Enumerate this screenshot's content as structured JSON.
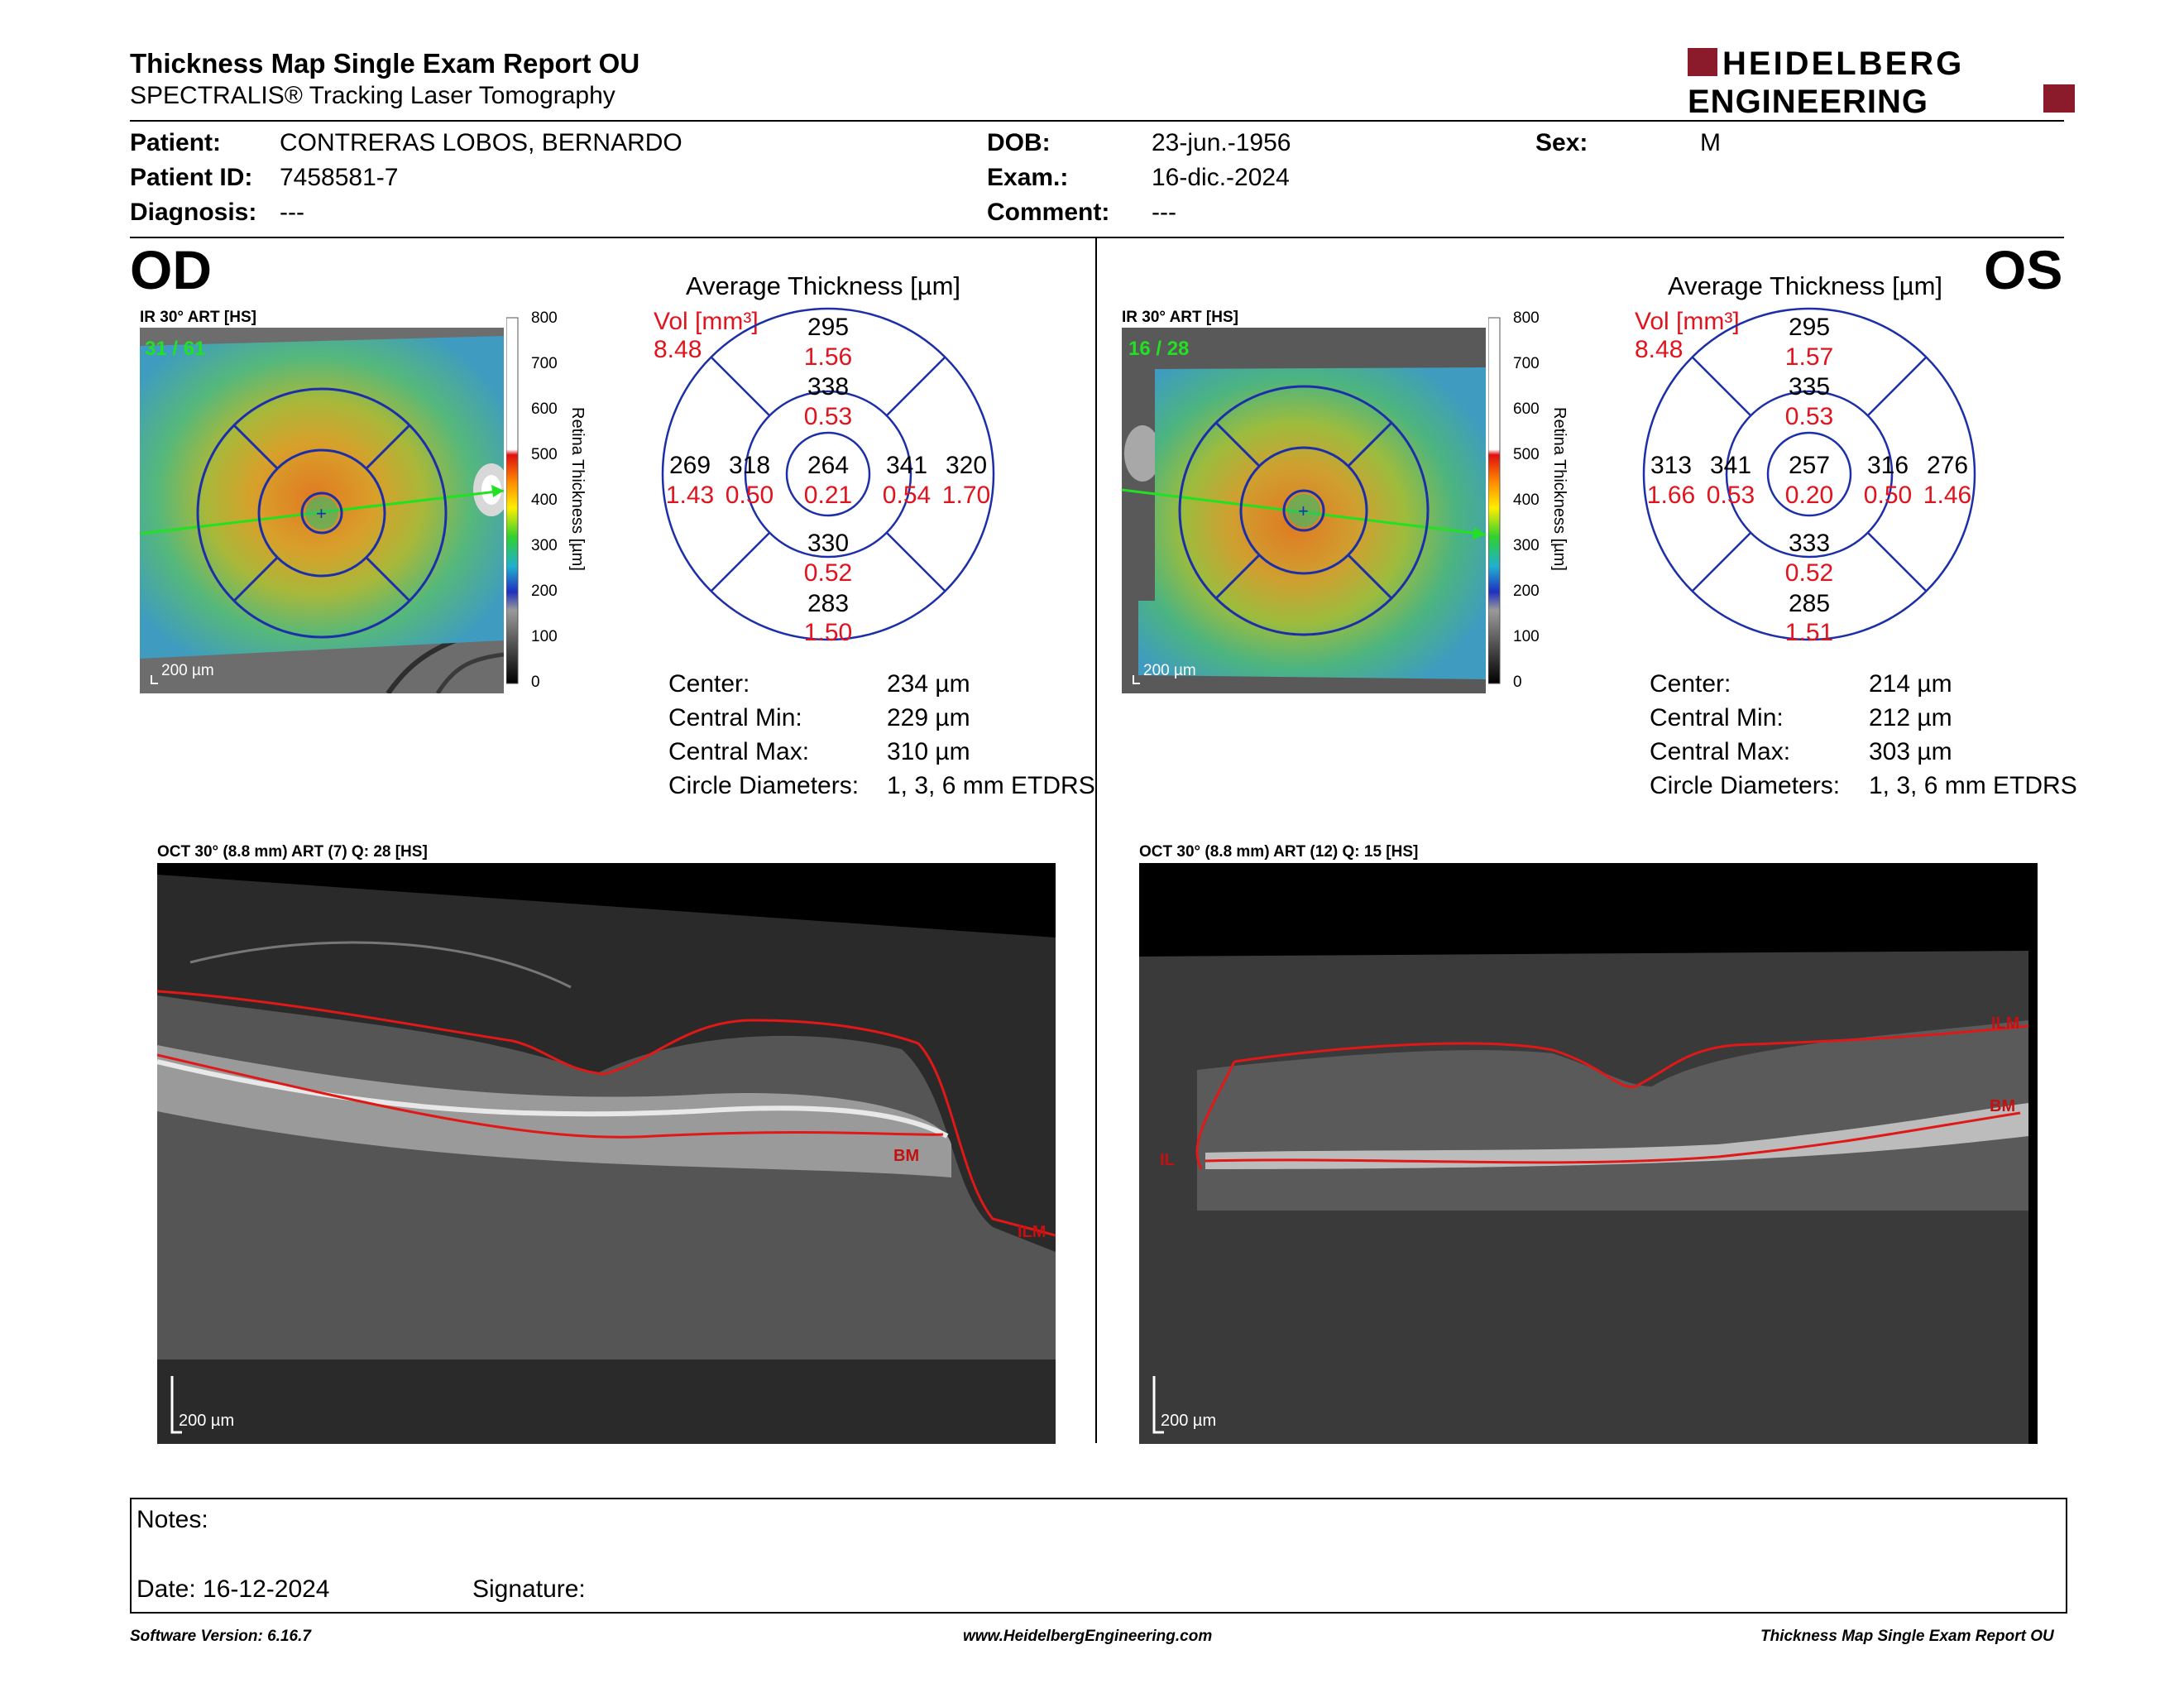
{
  "header": {
    "title": "Thickness Map Single Exam Report OU",
    "subtitle": "SPECTRALIS® Tracking Laser Tomography",
    "logo_line1": "HEIDELBERG",
    "logo_line2": "ENGINEERING",
    "logo_color": "#8b1a2a"
  },
  "patient": {
    "patient_label": "Patient:",
    "patient": "CONTRERAS LOBOS, BERNARDO",
    "id_label": "Patient ID:",
    "id": "7458581-7",
    "diagnosis_label": "Diagnosis:",
    "diagnosis": "---",
    "dob_label": "DOB:",
    "dob": "23-jun.-1956",
    "exam_label": "Exam.:",
    "exam": "16-dic.-2024",
    "comment_label": "Comment:",
    "comment": "---",
    "sex_label": "Sex:",
    "sex": "M"
  },
  "od": {
    "eye": "OD",
    "ir_caption": "IR 30° ART [HS]",
    "frames": "31 / 61",
    "scale_label": "200 µm",
    "colorbar_ticks": [
      "800",
      "700",
      "600",
      "500",
      "400",
      "300",
      "200",
      "100",
      "0"
    ],
    "colorbar_label": "Retina Thickness [µm]",
    "avg_title": "Average Thickness [µm]",
    "vol_label": "Vol [mm³]",
    "vol_total": "8.48",
    "center": {
      "t": "264",
      "v": "0.21"
    },
    "inner": {
      "sup": {
        "t": "338",
        "v": "0.53"
      },
      "inf": {
        "t": "330",
        "v": "0.52"
      },
      "nasal_left": {
        "t": "318",
        "v": "0.50"
      },
      "right": {
        "t": "341",
        "v": "0.54"
      }
    },
    "outer": {
      "sup": {
        "t": "295",
        "v": "1.56"
      },
      "inf": {
        "t": "283",
        "v": "1.50"
      },
      "left": {
        "t": "269",
        "v": "1.43"
      },
      "right": {
        "t": "320",
        "v": "1.70"
      }
    },
    "stats": [
      {
        "label": "Center:",
        "value": "234 µm"
      },
      {
        "label": "Central Min:",
        "value": "229 µm"
      },
      {
        "label": "Central Max:",
        "value": "310 µm"
      },
      {
        "label": "Circle Diameters:",
        "value": "1, 3, 6 mm ETDRS"
      }
    ],
    "oct_caption": "OCT 30° (8.8 mm) ART (7) Q: 28 [HS]",
    "oct_labels": {
      "bm": "BM",
      "ilm": "ILM"
    },
    "oct_scale": "200 µm"
  },
  "os": {
    "eye": "OS",
    "ir_caption": "IR 30° ART [HS]",
    "frames": "16 / 28",
    "scale_label": "200 µm",
    "colorbar_ticks": [
      "800",
      "700",
      "600",
      "500",
      "400",
      "300",
      "200",
      "100",
      "0"
    ],
    "colorbar_label": "Retina Thickness [µm]",
    "avg_title": "Average Thickness [µm]",
    "vol_label": "Vol [mm³]",
    "vol_total": "8.48",
    "center": {
      "t": "257",
      "v": "0.20"
    },
    "inner": {
      "sup": {
        "t": "335",
        "v": "0.53"
      },
      "inf": {
        "t": "333",
        "v": "0.52"
      },
      "nasal_left": {
        "t": "341",
        "v": "0.53"
      },
      "right": {
        "t": "316",
        "v": "0.50"
      }
    },
    "outer": {
      "sup": {
        "t": "295",
        "v": "1.57"
      },
      "inf": {
        "t": "285",
        "v": "1.51"
      },
      "left": {
        "t": "313",
        "v": "1.66"
      },
      "right": {
        "t": "276",
        "v": "1.46"
      }
    },
    "stats": [
      {
        "label": "Center:",
        "value": "214 µm"
      },
      {
        "label": "Central Min:",
        "value": "212 µm"
      },
      {
        "label": "Central Max:",
        "value": "303 µm"
      },
      {
        "label": "Circle Diameters:",
        "value": "1, 3, 6 mm ETDRS"
      }
    ],
    "oct_caption": "OCT 30° (8.8 mm) ART (12) Q: 15 [HS]",
    "oct_labels": {
      "bm": "BM",
      "ilm": "ILM",
      "ilm_short": "IL"
    },
    "oct_scale": "200 µm"
  },
  "notes": {
    "notes_label": "Notes:",
    "date_label": "Date: 16-12-2024",
    "signature_label": "Signature:"
  },
  "footer": {
    "software": "Software Version: 6.16.7",
    "website": "www.HeidelbergEngineering.com",
    "report": "Thickness Map Single Exam Report OU"
  },
  "colors": {
    "grid_blue": "#1d2fa8",
    "volume_red": "#e0141e",
    "frames_green": "#22e022",
    "segment_red": "#e01818"
  }
}
